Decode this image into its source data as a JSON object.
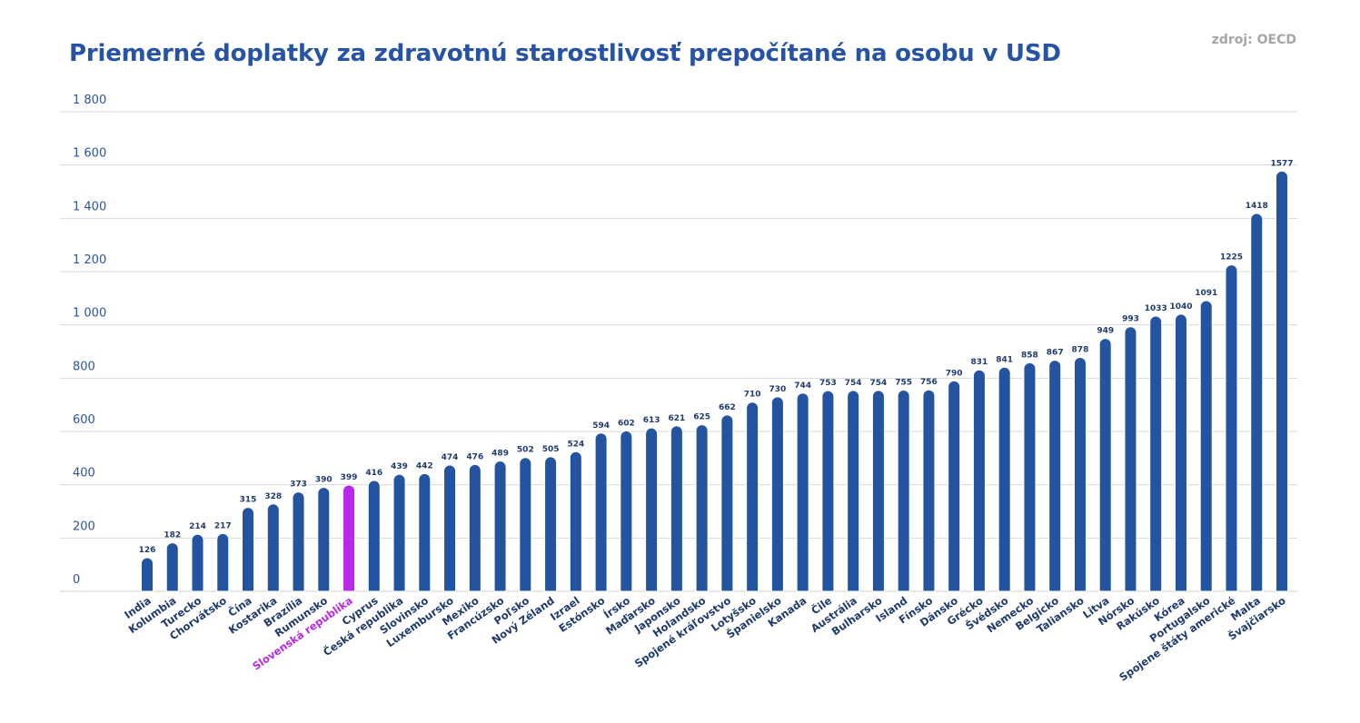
{
  "title": "Priemerné doplatky za zdravotnú starostlivosť prepočítané na osobu v USD",
  "source": "zdroj: OECD",
  "colors": {
    "bar": "#2454a0",
    "highlight": "#b927ea",
    "grid": "#d9d9d9",
    "title": "#2653a3",
    "source": "#a6a6a6"
  },
  "chart_data": {
    "type": "bar",
    "title": "Priemerné doplatky za zdravotnú starostlivosť prepočítané na osobu v USD",
    "xlabel": "",
    "ylabel": "",
    "ylim": [
      0,
      1800
    ],
    "yticks": [
      0,
      200,
      400,
      600,
      800,
      1000,
      1200,
      1400,
      1600,
      1800
    ],
    "ytick_labels": [
      "0",
      "200",
      "400",
      "600",
      "800",
      "1 000",
      "1 200",
      "1 400",
      "1 600",
      "1 800"
    ],
    "grid": true,
    "highlight_category": "Slovenská republika",
    "categories": [
      "India",
      "Kolumbia",
      "Turecko",
      "Chorvátsko",
      "Čína",
      "Kostarika",
      "Brazília",
      "Rumunsko",
      "Slovenská republika",
      "Cyprus",
      "Česká republika",
      "Slovinsko",
      "Luxembursko",
      "Mexiko",
      "Francúzsko",
      "Poľsko",
      "Nový Zéland",
      "Izrael",
      "Estónsko",
      "Írsko",
      "Maďarsko",
      "Japonsko",
      "Holandsko",
      "Spojené kráľovstvo",
      "Lotyšsko",
      "Španielsko",
      "Kanada",
      "Čile",
      "Austrália",
      "Bulharsko",
      "Island",
      "Fínsko",
      "Dánsko",
      "Grécko",
      "Švédsko",
      "Nemecko",
      "Belgicko",
      "Taliansko",
      "Litva",
      "Nórsko",
      "Rakúsko",
      "Kórea",
      "Portugalsko",
      "Spojene štáty americké",
      "Malta",
      "Švajčiarsko"
    ],
    "values": [
      126,
      182,
      214,
      217,
      315,
      328,
      373,
      390,
      399,
      416,
      439,
      442,
      474,
      476,
      489,
      502,
      505,
      524,
      594,
      602,
      613,
      621,
      625,
      662,
      710,
      730,
      744,
      753,
      754,
      754,
      755,
      756,
      790,
      831,
      841,
      858,
      867,
      878,
      949,
      993,
      1033,
      1040,
      1091,
      1225,
      1418,
      1577
    ]
  }
}
